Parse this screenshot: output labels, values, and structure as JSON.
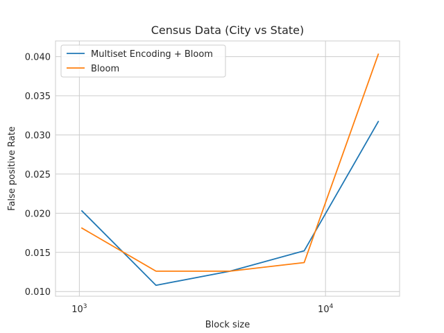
{
  "chart_data": {
    "type": "line",
    "title": "Census Data (City vs State)",
    "xlabel": "Block size",
    "ylabel": "False positive Rate",
    "x_scale": "log",
    "xlim": [
      800,
      20000
    ],
    "ylim": [
      0.0094,
      0.042
    ],
    "x_ticks": [
      {
        "value": 1000,
        "base": "10",
        "exp": "3"
      },
      {
        "value": 10000,
        "base": "10",
        "exp": "4"
      }
    ],
    "y_ticks": [
      {
        "value": 0.01,
        "label": "0.010"
      },
      {
        "value": 0.015,
        "label": "0.015"
      },
      {
        "value": 0.02,
        "label": "0.020"
      },
      {
        "value": 0.025,
        "label": "0.025"
      },
      {
        "value": 0.03,
        "label": "0.030"
      },
      {
        "value": 0.035,
        "label": "0.035"
      },
      {
        "value": 0.04,
        "label": "0.040"
      }
    ],
    "grid": true,
    "legend_position": "top-left",
    "x": [
      1024,
      2048,
      4096,
      8192,
      16384
    ],
    "series": [
      {
        "name": "Multiset Encoding + Bloom",
        "color": "#1f77b4",
        "values": [
          0.0203,
          0.0108,
          0.0126,
          0.0152,
          0.0317
        ]
      },
      {
        "name": "Bloom",
        "color": "#ff7f0e",
        "values": [
          0.0181,
          0.0126,
          0.0126,
          0.0137,
          0.0403
        ]
      }
    ]
  }
}
